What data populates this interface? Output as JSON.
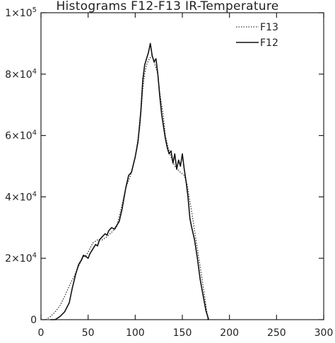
{
  "chart_data": {
    "type": "line",
    "title": "Histograms F12-F13 IR-Temperature",
    "xlabel": "",
    "ylabel": "",
    "xlim": [
      0,
      300
    ],
    "ylim": [
      0,
      100000
    ],
    "x_ticks": [
      0,
      50,
      100,
      150,
      200,
      250,
      300
    ],
    "x_tick_labels": [
      "0",
      "50",
      "100",
      "150",
      "200",
      "250",
      "300"
    ],
    "y_ticks": [
      0,
      20000,
      40000,
      60000,
      80000,
      100000
    ],
    "y_tick_labels": [
      {
        "base": "0",
        "exp": ""
      },
      {
        "base": "2×10",
        "exp": "4"
      },
      {
        "base": "4×10",
        "exp": "4"
      },
      {
        "base": "6×10",
        "exp": "4"
      },
      {
        "base": "8×10",
        "exp": "4"
      },
      {
        "base": "1×10",
        "exp": "5"
      }
    ],
    "grid": false,
    "legend_position": "top-right",
    "series": [
      {
        "name": "F13",
        "style": "dotted",
        "color": "#333333",
        "points": [
          [
            5,
            0
          ],
          [
            10,
            1000
          ],
          [
            15,
            2500
          ],
          [
            20,
            4500
          ],
          [
            25,
            7500
          ],
          [
            30,
            11000
          ],
          [
            35,
            14000
          ],
          [
            40,
            17500
          ],
          [
            45,
            20500
          ],
          [
            48,
            21000
          ],
          [
            50,
            22000
          ],
          [
            55,
            25000
          ],
          [
            60,
            26000
          ],
          [
            65,
            26000
          ],
          [
            70,
            27000
          ],
          [
            75,
            28500
          ],
          [
            80,
            30000
          ],
          [
            85,
            36000
          ],
          [
            90,
            43000
          ],
          [
            95,
            47000
          ],
          [
            100,
            53000
          ],
          [
            105,
            63000
          ],
          [
            108,
            75000
          ],
          [
            110,
            80000
          ],
          [
            112,
            83000
          ],
          [
            115,
            85000
          ],
          [
            118,
            86000
          ],
          [
            120,
            84000
          ],
          [
            122,
            82000
          ],
          [
            124,
            80000
          ],
          [
            126,
            74000
          ],
          [
            128,
            70000
          ],
          [
            130,
            66000
          ],
          [
            132,
            60000
          ],
          [
            135,
            56000
          ],
          [
            138,
            53000
          ],
          [
            142,
            50000
          ],
          [
            145,
            49000
          ],
          [
            148,
            48000
          ],
          [
            152,
            47000
          ],
          [
            155,
            44000
          ],
          [
            160,
            35000
          ],
          [
            165,
            25000
          ],
          [
            170,
            15000
          ],
          [
            175,
            5000
          ],
          [
            177,
            0
          ]
        ]
      },
      {
        "name": "F12",
        "style": "solid",
        "color": "#111111",
        "points": [
          [
            10,
            0
          ],
          [
            15,
            0
          ],
          [
            20,
            1000
          ],
          [
            25,
            2500
          ],
          [
            30,
            5500
          ],
          [
            33,
            10000
          ],
          [
            37,
            15000
          ],
          [
            40,
            18000
          ],
          [
            43,
            19500
          ],
          [
            45,
            21000
          ],
          [
            48,
            20500
          ],
          [
            50,
            20000
          ],
          [
            52,
            21500
          ],
          [
            55,
            23000
          ],
          [
            58,
            24500
          ],
          [
            60,
            24000
          ],
          [
            62,
            26000
          ],
          [
            65,
            27000
          ],
          [
            68,
            28000
          ],
          [
            70,
            27500
          ],
          [
            72,
            29000
          ],
          [
            75,
            30000
          ],
          [
            78,
            29500
          ],
          [
            80,
            30500
          ],
          [
            83,
            32000
          ],
          [
            86,
            36000
          ],
          [
            90,
            43000
          ],
          [
            93,
            47000
          ],
          [
            96,
            48000
          ],
          [
            100,
            53000
          ],
          [
            103,
            58000
          ],
          [
            106,
            68000
          ],
          [
            108,
            78000
          ],
          [
            110,
            83000
          ],
          [
            112,
            85000
          ],
          [
            114,
            87000
          ],
          [
            116,
            90000
          ],
          [
            118,
            86000
          ],
          [
            120,
            84000
          ],
          [
            122,
            85000
          ],
          [
            124,
            80000
          ],
          [
            126,
            73000
          ],
          [
            128,
            67000
          ],
          [
            130,
            63000
          ],
          [
            132,
            59000
          ],
          [
            134,
            56000
          ],
          [
            136,
            54000
          ],
          [
            138,
            55000
          ],
          [
            140,
            51000
          ],
          [
            142,
            54000
          ],
          [
            144,
            49000
          ],
          [
            146,
            52000
          ],
          [
            148,
            50000
          ],
          [
            150,
            54000
          ],
          [
            152,
            49000
          ],
          [
            154,
            45000
          ],
          [
            156,
            40000
          ],
          [
            158,
            33000
          ],
          [
            160,
            30000
          ],
          [
            163,
            26000
          ],
          [
            166,
            20000
          ],
          [
            169,
            13000
          ],
          [
            172,
            8000
          ],
          [
            175,
            3000
          ],
          [
            178,
            0
          ]
        ]
      }
    ]
  }
}
